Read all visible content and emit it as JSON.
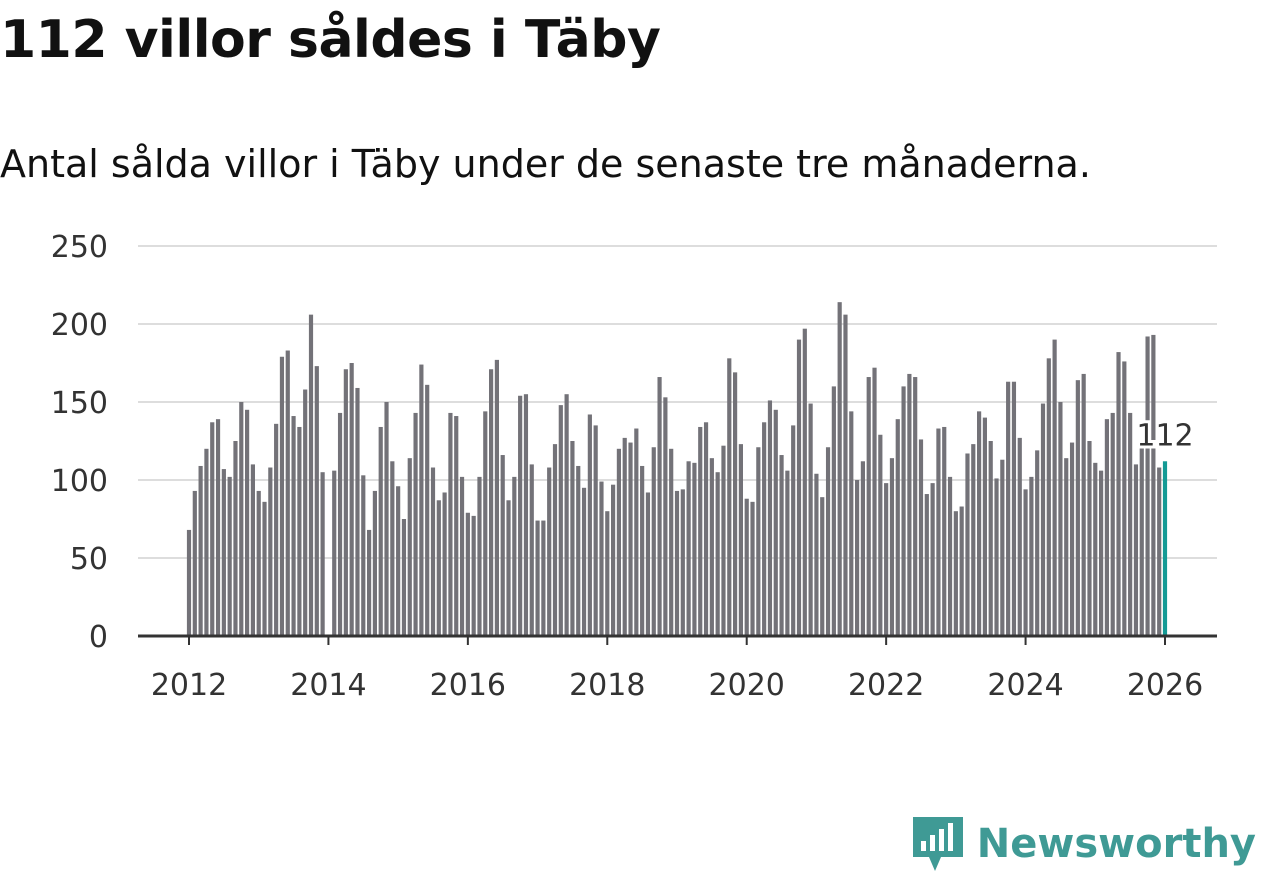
{
  "title": "112 villor såldes i Täby",
  "subtitle": "Antal sålda villor i Täby under de senaste tre månaderna.",
  "brand": {
    "name": "Newsworthy",
    "color": "#3f9a95",
    "icon": "newsworthy-logo-icon"
  },
  "colors": {
    "bar": "#737278",
    "highlight": "#149a95",
    "grid": "#dddddd",
    "axis": "#333333"
  },
  "chart_data": {
    "type": "bar",
    "title": "112 villor såldes i Täby",
    "xlabel": "",
    "ylabel": "",
    "ylim": [
      0,
      250
    ],
    "yticks": [
      "0",
      "50",
      "100",
      "150",
      "200",
      "250"
    ],
    "xticks": [
      "2012",
      "2014",
      "2016",
      "2018",
      "2020",
      "2022",
      "2024",
      "2026"
    ],
    "start": "2012-01",
    "end": "2026-01",
    "highlight_label": "112",
    "values": [
      68,
      93,
      109,
      120,
      137,
      139,
      107,
      102,
      125,
      150,
      145,
      110,
      93,
      86,
      108,
      136,
      179,
      183,
      141,
      134,
      158,
      206,
      173,
      105,
      null,
      106,
      143,
      171,
      175,
      159,
      103,
      68,
      93,
      134,
      150,
      112,
      96,
      75,
      114,
      143,
      174,
      161,
      108,
      87,
      92,
      143,
      141,
      102,
      79,
      77,
      102,
      144,
      171,
      177,
      116,
      87,
      102,
      154,
      155,
      110,
      74,
      74,
      108,
      123,
      148,
      155,
      125,
      109,
      95,
      142,
      135,
      99,
      80,
      97,
      120,
      127,
      124,
      133,
      109,
      92,
      121,
      166,
      153,
      120,
      93,
      94,
      112,
      111,
      134,
      137,
      114,
      105,
      122,
      178,
      169,
      123,
      88,
      86,
      121,
      137,
      151,
      145,
      116,
      106,
      135,
      190,
      197,
      149,
      104,
      89,
      121,
      160,
      214,
      206,
      144,
      100,
      112,
      166,
      172,
      129,
      98,
      114,
      139,
      160,
      168,
      166,
      126,
      91,
      98,
      133,
      134,
      102,
      80,
      83,
      117,
      123,
      144,
      140,
      125,
      101,
      113,
      163,
      163,
      127,
      94,
      102,
      119,
      149,
      178,
      190,
      150,
      114,
      124,
      164,
      168,
      125,
      111,
      106,
      139,
      143,
      182,
      176,
      143,
      110,
      121,
      192,
      193,
      108,
      112
    ]
  }
}
